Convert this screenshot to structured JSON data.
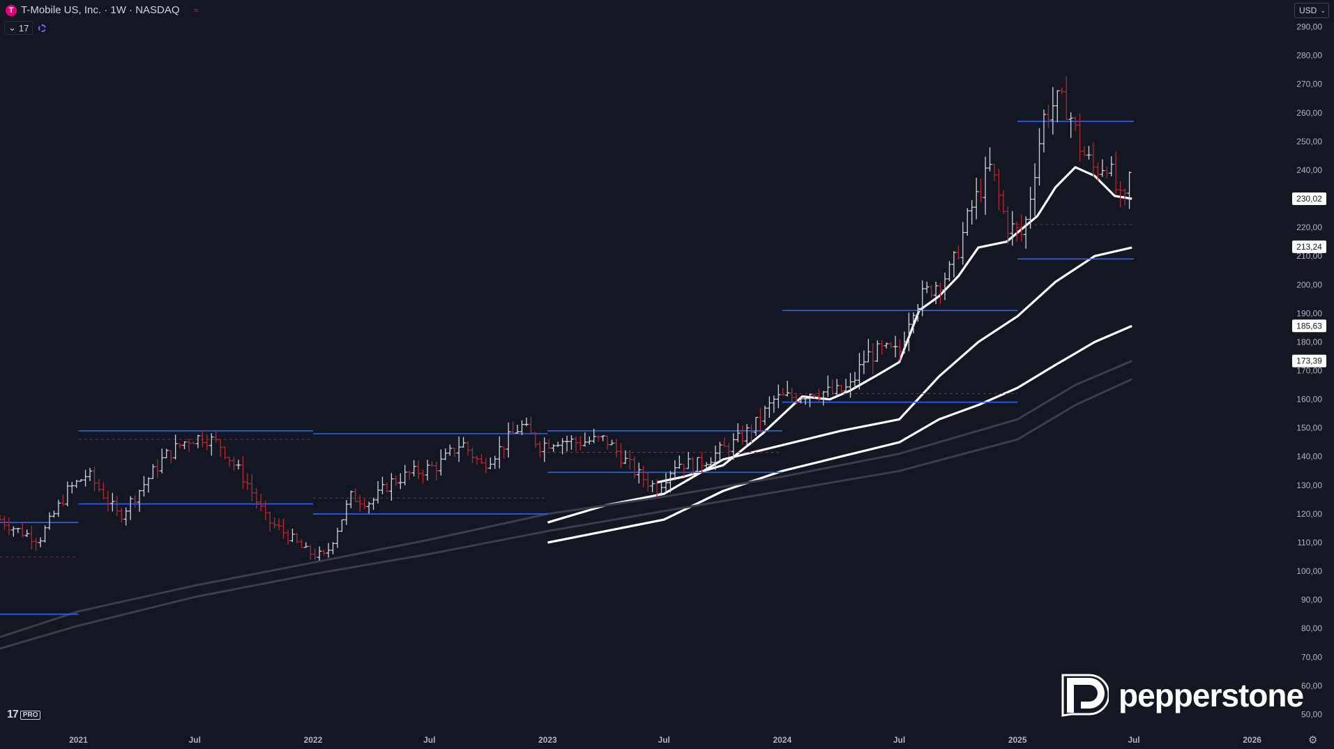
{
  "header": {
    "logo_letter": "T",
    "title": "T-Mobile US, Inc. · 1W · NASDAQ",
    "wave_icon": "≈",
    "indicator_count": "17"
  },
  "currency": "USD",
  "branding": {
    "tv_pro": "PRO",
    "pepperstone": "pepperstone"
  },
  "colors": {
    "background": "#131722",
    "bull": "#d1d4dc",
    "bear": "#b22833",
    "level": "#2962ff",
    "ma": "#ffffff",
    "ma_faint": "#3a3e4a",
    "brand": "#e20074"
  },
  "chart_data": {
    "type": "ohlc",
    "timeframe": "1W",
    "y_axis": {
      "position": "right",
      "min": 45,
      "max": 295,
      "ticks": [
        290,
        280,
        270,
        260,
        250,
        240,
        230,
        220,
        210,
        200,
        190,
        180,
        170,
        160,
        150,
        140,
        130,
        120,
        110,
        100,
        90,
        80,
        70,
        60,
        50
      ],
      "tick_labels": [
        "290,00",
        "280,00",
        "270,00",
        "260,00",
        "250,00",
        "240,00",
        "230,00",
        "220,00",
        "210,00",
        "200,00",
        "190,00",
        "180,00",
        "170,00",
        "160,00",
        "150,00",
        "140,00",
        "130,00",
        "120,00",
        "110,00",
        "100,00",
        "90,00",
        "80,00",
        "70,00",
        "60,00",
        "50,00"
      ]
    },
    "x_axis": {
      "start": "2020-09-01",
      "end": "2026-03-01",
      "ticks": [
        {
          "date": "2021-01-01",
          "label": "2021"
        },
        {
          "date": "2021-07-01",
          "label": "Jul"
        },
        {
          "date": "2022-01-01",
          "label": "2022"
        },
        {
          "date": "2022-07-01",
          "label": "Jul"
        },
        {
          "date": "2023-01-01",
          "label": "2023"
        },
        {
          "date": "2023-07-01",
          "label": "Jul"
        },
        {
          "date": "2024-01-01",
          "label": "2024"
        },
        {
          "date": "2024-07-01",
          "label": "Jul"
        },
        {
          "date": "2025-01-01",
          "label": "2025"
        },
        {
          "date": "2025-07-01",
          "label": "Jul"
        },
        {
          "date": "2026-01-01",
          "label": "2026"
        }
      ]
    },
    "anchors": [
      [
        "2020-09-01",
        118
      ],
      [
        "2020-10-01",
        114
      ],
      [
        "2020-11-01",
        111
      ],
      [
        "2020-12-15",
        128
      ],
      [
        "2021-01-15",
        134
      ],
      [
        "2021-02-15",
        125
      ],
      [
        "2021-03-05",
        119
      ],
      [
        "2021-04-15",
        131
      ],
      [
        "2021-05-15",
        140
      ],
      [
        "2021-06-20",
        146
      ],
      [
        "2021-07-15",
        147
      ],
      [
        "2021-08-10",
        144
      ],
      [
        "2021-09-20",
        131
      ],
      [
        "2021-10-20",
        118
      ],
      [
        "2021-11-20",
        113
      ],
      [
        "2021-12-20",
        107
      ],
      [
        "2022-01-01",
        106
      ],
      [
        "2022-01-20",
        105
      ],
      [
        "2022-03-01",
        126
      ],
      [
        "2022-04-01",
        124
      ],
      [
        "2022-05-01",
        131
      ],
      [
        "2022-06-01",
        134
      ],
      [
        "2022-07-15",
        137
      ],
      [
        "2022-08-20",
        145
      ],
      [
        "2022-09-20",
        137
      ],
      [
        "2022-10-20",
        143
      ],
      [
        "2022-11-20",
        151
      ],
      [
        "2022-12-20",
        144
      ],
      [
        "2023-01-15",
        146
      ],
      [
        "2023-02-15",
        145
      ],
      [
        "2023-04-01",
        146
      ],
      [
        "2023-05-20",
        134
      ],
      [
        "2023-06-20",
        129
      ],
      [
        "2023-07-20",
        138
      ],
      [
        "2023-08-20",
        137
      ],
      [
        "2023-09-20",
        141
      ],
      [
        "2023-10-20",
        145
      ],
      [
        "2023-11-20",
        151
      ],
      [
        "2023-12-20",
        160
      ],
      [
        "2024-01-20",
        161
      ],
      [
        "2024-02-20",
        163
      ],
      [
        "2024-03-20",
        162
      ],
      [
        "2024-04-15",
        164
      ],
      [
        "2024-05-10",
        175
      ],
      [
        "2024-06-05",
        177
      ],
      [
        "2024-07-01",
        176
      ],
      [
        "2024-07-20",
        192
      ],
      [
        "2024-08-20",
        199
      ],
      [
        "2024-09-20",
        205
      ],
      [
        "2024-10-20",
        226
      ],
      [
        "2024-11-20",
        241
      ],
      [
        "2024-12-15",
        221
      ],
      [
        "2025-01-10",
        217
      ],
      [
        "2025-02-10",
        258
      ],
      [
        "2025-03-01",
        264
      ],
      [
        "2025-03-20",
        262
      ],
      [
        "2025-04-10",
        247
      ],
      [
        "2025-05-01",
        240
      ],
      [
        "2025-05-20",
        243
      ],
      [
        "2025-06-05",
        232
      ],
      [
        "2025-06-15",
        226
      ],
      [
        "2025-06-25",
        239
      ]
    ],
    "moving_averages": [
      {
        "period": 20,
        "last": 230.02,
        "label": "230,02",
        "faint": false,
        "points": [
          [
            "2023-06-20",
            131
          ],
          [
            "2023-08-01",
            133
          ],
          [
            "2023-10-01",
            137
          ],
          [
            "2023-12-01",
            148
          ],
          [
            "2024-02-01",
            161
          ],
          [
            "2024-03-15",
            160
          ],
          [
            "2024-04-15",
            163
          ],
          [
            "2024-06-01",
            169
          ],
          [
            "2024-07-01",
            173
          ],
          [
            "2024-08-01",
            191
          ],
          [
            "2024-09-01",
            196
          ],
          [
            "2024-10-01",
            203
          ],
          [
            "2024-11-01",
            213
          ],
          [
            "2024-12-15",
            215
          ],
          [
            "2025-02-01",
            224
          ],
          [
            "2025-03-01",
            234
          ],
          [
            "2025-04-01",
            241
          ],
          [
            "2025-05-01",
            238
          ],
          [
            "2025-06-01",
            231
          ],
          [
            "2025-06-28",
            230
          ]
        ]
      },
      {
        "period": 50,
        "last": 213.24,
        "label": "213,24",
        "faint": false,
        "points": [
          [
            "2023-01-01",
            117
          ],
          [
            "2023-04-01",
            123
          ],
          [
            "2023-07-01",
            127
          ],
          [
            "2023-10-01",
            139
          ],
          [
            "2024-01-01",
            144
          ],
          [
            "2024-04-01",
            149
          ],
          [
            "2024-07-01",
            153
          ],
          [
            "2024-09-01",
            168
          ],
          [
            "2024-11-01",
            180
          ],
          [
            "2025-01-01",
            189
          ],
          [
            "2025-03-01",
            201
          ],
          [
            "2025-05-01",
            210
          ],
          [
            "2025-06-28",
            213
          ]
        ]
      },
      {
        "period": 100,
        "last": 185.63,
        "label": "185,63",
        "faint": false,
        "points": [
          [
            "2023-01-01",
            110
          ],
          [
            "2023-07-01",
            118
          ],
          [
            "2023-10-01",
            128
          ],
          [
            "2024-01-01",
            135
          ],
          [
            "2024-04-01",
            140
          ],
          [
            "2024-07-01",
            145
          ],
          [
            "2024-09-01",
            153
          ],
          [
            "2024-11-01",
            158
          ],
          [
            "2025-01-01",
            164
          ],
          [
            "2025-03-01",
            172
          ],
          [
            "2025-05-01",
            180
          ],
          [
            "2025-06-28",
            185.6
          ]
        ]
      },
      {
        "period": 200,
        "last": 173.39,
        "label": "173,39",
        "faint": true,
        "points": [
          [
            "2020-09-01",
            77
          ],
          [
            "2021-01-01",
            86
          ],
          [
            "2021-07-01",
            95
          ],
          [
            "2022-01-01",
            103
          ],
          [
            "2022-07-01",
            111
          ],
          [
            "2023-01-01",
            120
          ],
          [
            "2023-07-01",
            126
          ],
          [
            "2024-01-01",
            133
          ],
          [
            "2024-07-01",
            141
          ],
          [
            "2025-01-01",
            153
          ],
          [
            "2025-04-01",
            165
          ],
          [
            "2025-06-28",
            173.4
          ]
        ]
      },
      {
        "period": 250,
        "last": null,
        "label": "",
        "faint": true,
        "points": [
          [
            "2020-09-01",
            73
          ],
          [
            "2021-01-01",
            81
          ],
          [
            "2021-07-01",
            91
          ],
          [
            "2022-01-01",
            99
          ],
          [
            "2022-07-01",
            106
          ],
          [
            "2023-01-01",
            114
          ],
          [
            "2023-07-01",
            121
          ],
          [
            "2024-01-01",
            128
          ],
          [
            "2024-07-01",
            135
          ],
          [
            "2025-01-01",
            146
          ],
          [
            "2025-04-01",
            158
          ],
          [
            "2025-06-28",
            167
          ]
        ]
      }
    ],
    "levels": [
      {
        "y": 117,
        "from": "2020-09-01",
        "to": "2021-01-01",
        "style": "solid"
      },
      {
        "y": 85,
        "from": "2020-09-01",
        "to": "2021-01-01",
        "style": "solid"
      },
      {
        "y": 105,
        "from": "2020-09-01",
        "to": "2021-01-01",
        "style": "dashed"
      },
      {
        "y": 149,
        "from": "2021-01-01",
        "to": "2022-01-01",
        "style": "solid"
      },
      {
        "y": 146,
        "from": "2021-01-01",
        "to": "2022-01-01",
        "style": "dashed"
      },
      {
        "y": 123.5,
        "from": "2021-01-01",
        "to": "2022-01-01",
        "style": "solid"
      },
      {
        "y": 148,
        "from": "2022-01-01",
        "to": "2023-01-01",
        "style": "solid"
      },
      {
        "y": 125.5,
        "from": "2022-01-01",
        "to": "2023-01-01",
        "style": "dashed"
      },
      {
        "y": 120,
        "from": "2022-01-01",
        "to": "2023-01-01",
        "style": "solid"
      },
      {
        "y": 149,
        "from": "2023-01-01",
        "to": "2024-01-01",
        "style": "solid"
      },
      {
        "y": 141.5,
        "from": "2023-01-01",
        "to": "2024-01-01",
        "style": "dashed"
      },
      {
        "y": 134.5,
        "from": "2023-01-01",
        "to": "2024-01-01",
        "style": "solid"
      },
      {
        "y": 191,
        "from": "2024-01-01",
        "to": "2025-01-01",
        "style": "solid"
      },
      {
        "y": 162,
        "from": "2024-01-01",
        "to": "2025-01-01",
        "style": "dashed"
      },
      {
        "y": 159,
        "from": "2024-01-01",
        "to": "2025-01-01",
        "style": "solid"
      },
      {
        "y": 257,
        "from": "2025-01-01",
        "to": "2025-07-01",
        "style": "solid"
      },
      {
        "y": 221,
        "from": "2025-01-01",
        "to": "2025-07-01",
        "style": "dashed"
      },
      {
        "y": 209,
        "from": "2025-01-01",
        "to": "2025-07-01",
        "style": "solid"
      }
    ]
  }
}
